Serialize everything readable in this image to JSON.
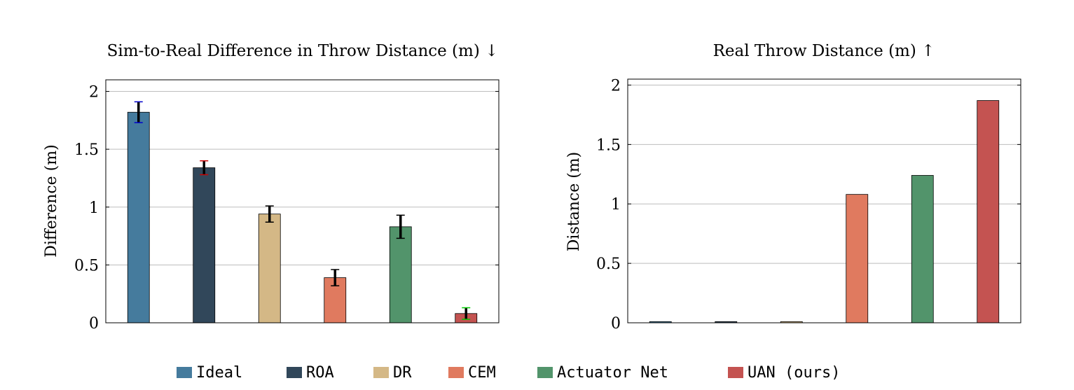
{
  "chart_data": [
    {
      "type": "bar",
      "title": "Sim-to-Real Difference in Throw Distance (m) ↓",
      "xlabel": "",
      "ylabel": "Difference (m)",
      "ylim": [
        0,
        2.1
      ],
      "yticks": [
        0,
        0.5,
        1,
        1.5,
        2
      ],
      "grid": "horizontal",
      "categories": [
        "Ideal",
        "ROA",
        "DR",
        "CEM",
        "Actuator Net",
        "UAN (ours)"
      ],
      "values": [
        1.82,
        1.34,
        0.94,
        0.39,
        0.83,
        0.08
      ],
      "errors": [
        0.09,
        0.06,
        0.07,
        0.07,
        0.1,
        0.05
      ],
      "error_colors": [
        "#0000cc",
        "#cc0000",
        "#000000",
        "#000000",
        "#000000",
        "#00cc00"
      ]
    },
    {
      "type": "bar",
      "title": "Real Throw Distance (m) ↑",
      "xlabel": "",
      "ylabel": "Distance (m)",
      "ylim": [
        0,
        2.05
      ],
      "yticks": [
        0,
        0.5,
        1,
        1.5,
        2
      ],
      "grid": "horizontal",
      "categories": [
        "Ideal",
        "ROA",
        "DR",
        "CEM",
        "Actuator Net",
        "UAN (ours)"
      ],
      "values": [
        0.01,
        0.01,
        0.01,
        1.08,
        1.24,
        1.87
      ]
    }
  ],
  "legend": {
    "placement": "bottom",
    "items": [
      {
        "label": "Ideal",
        "color": "#457b9d"
      },
      {
        "label": "ROA",
        "color": "#31475a"
      },
      {
        "label": "DR",
        "color": "#d4b886"
      },
      {
        "label": "CEM",
        "color": "#e07a5f"
      },
      {
        "label": "Actuator Net",
        "color": "#52946b"
      },
      {
        "label": "UAN (ours)",
        "color": "#c45351"
      }
    ]
  }
}
